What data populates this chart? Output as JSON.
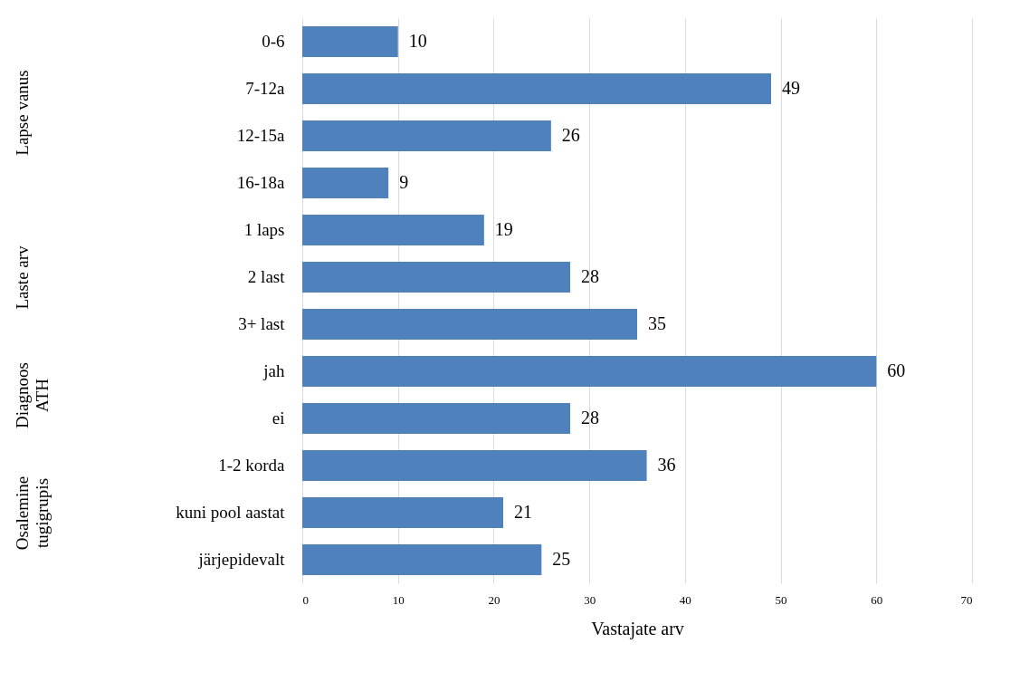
{
  "chart_data": [
    {
      "type": "bar",
      "orientation": "horizontal",
      "ylabel": "Lapse vanus",
      "categories": [
        "0-6",
        "7-12a",
        "12-15a",
        "16-18a"
      ],
      "values": [
        10,
        49,
        26,
        9
      ],
      "color": "#4f81bd",
      "xlim": [
        0,
        70
      ],
      "xticks": [
        0,
        10,
        20,
        30,
        40,
        50,
        60,
        70
      ],
      "grid": "x",
      "data_labels": true,
      "tick_labels": "y"
    },
    {
      "type": "bar",
      "orientation": "horizontal",
      "ylabel": "Laste arv",
      "categories": [
        "1 laps",
        "2 last",
        "3+ last"
      ],
      "values": [
        19,
        28,
        35
      ],
      "color": "#4f81bd",
      "xlim": [
        0,
        70
      ],
      "xticks": [
        0,
        10,
        20,
        30,
        40,
        50,
        60,
        70
      ],
      "grid": "x",
      "data_labels": true,
      "tick_labels": "y"
    },
    {
      "type": "bar",
      "orientation": "horizontal",
      "ylabel": "Diagnoos ATH",
      "categories": [
        "jah",
        "ei"
      ],
      "values": [
        60,
        28
      ],
      "color": "#4f81bd",
      "xlim": [
        0,
        70
      ],
      "xticks": [
        0,
        10,
        20,
        30,
        40,
        50,
        60,
        70
      ],
      "grid": "x",
      "data_labels": true,
      "tick_labels": "y"
    },
    {
      "type": "bar",
      "orientation": "horizontal",
      "ylabel": "Osalemine tugigrupis",
      "xlabel": "Vastajate arv",
      "categories": [
        "1-2 korda",
        "kuni pool aastat",
        "järjepidevalt"
      ],
      "values": [
        36,
        21,
        25
      ],
      "color": "#4f81bd",
      "xlim": [
        0,
        70
      ],
      "xticks": [
        0,
        10,
        20,
        30,
        40,
        50,
        60,
        70
      ],
      "grid": "x",
      "data_labels": true
    }
  ]
}
